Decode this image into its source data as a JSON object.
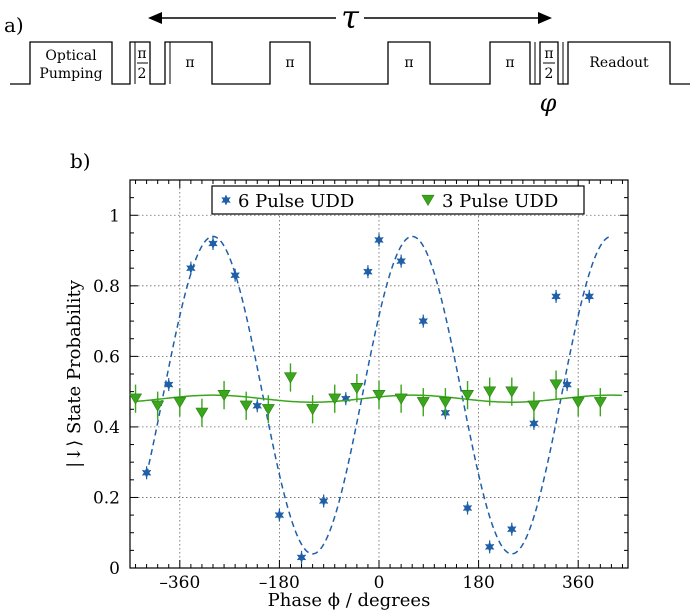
{
  "panel_a": {
    "label": "a)",
    "tau": "τ",
    "phi": "φ",
    "sequence": [
      {
        "label": [
          "Optical",
          "Pumping"
        ]
      },
      {
        "label": [
          "π",
          "2"
        ],
        "fraction": true
      },
      {
        "label": [
          "π"
        ]
      },
      {
        "label": [
          "π"
        ]
      },
      {
        "label": [
          "π"
        ]
      },
      {
        "label": [
          "π"
        ]
      },
      {
        "label": [
          "π",
          "2"
        ],
        "fraction": true
      },
      {
        "label": [
          "Readout"
        ]
      }
    ]
  },
  "panel_b": {
    "label": "b)"
  },
  "chart_data": {
    "type": "scatter",
    "xlabel": "Phase ϕ / degrees",
    "ylabel": "|↓⟩ State Probability",
    "xlim": [
      -450,
      450
    ],
    "ylim": [
      0,
      1.1
    ],
    "xticks": [
      -360,
      -180,
      0,
      180,
      360
    ],
    "yticks": [
      0,
      0.2,
      0.4,
      0.6,
      0.8,
      1
    ],
    "ytick_labels": [
      "0",
      "0.2",
      "0.4",
      "0.6",
      "0.8",
      "1"
    ],
    "xtick_labels": [
      "–360",
      "–180",
      "0",
      "180",
      "360"
    ],
    "grid": true,
    "legend_position": "top",
    "series": [
      {
        "name": "6 Pulse UDD",
        "color": "#1f5fa8",
        "marker": "star",
        "x": [
          -420,
          -380,
          -340,
          -300,
          -260,
          -220,
          -180,
          -140,
          -100,
          -60,
          -20,
          0,
          40,
          80,
          120,
          160,
          200,
          240,
          280,
          320,
          340,
          380
        ],
        "y": [
          0.27,
          0.52,
          0.85,
          0.92,
          0.83,
          0.46,
          0.15,
          0.03,
          0.19,
          0.48,
          0.84,
          0.93,
          0.87,
          0.7,
          0.44,
          0.17,
          0.06,
          0.11,
          0.41,
          0.77,
          0.52,
          0.77
        ],
        "err": [
          0.01,
          0.01,
          0.01,
          0.01,
          0.01,
          0.01,
          0.01,
          0.01,
          0.01,
          0.01,
          0.01,
          0.01,
          0.01,
          0.01,
          0.01,
          0.01,
          0.01,
          0.01,
          0.01,
          0.01,
          0.01,
          0.01
        ],
        "fit": {
          "style": "dashed",
          "offset": 0.49,
          "amplitude": 0.45,
          "period": 360,
          "phase_deg": 60,
          "x_range": [
            -420,
            420
          ]
        }
      },
      {
        "name": "3 Pulse UDD",
        "color": "#3aa61c",
        "marker": "triangle-down",
        "x": [
          -440,
          -400,
          -360,
          -320,
          -280,
          -240,
          -200,
          -160,
          -120,
          -80,
          -40,
          0,
          40,
          80,
          120,
          160,
          200,
          240,
          280,
          320,
          360,
          400
        ],
        "y": [
          0.48,
          0.46,
          0.47,
          0.44,
          0.49,
          0.46,
          0.45,
          0.54,
          0.45,
          0.48,
          0.51,
          0.49,
          0.48,
          0.47,
          0.47,
          0.49,
          0.5,
          0.5,
          0.46,
          0.52,
          0.47,
          0.47
        ],
        "err": [
          0.04,
          0.04,
          0.04,
          0.04,
          0.04,
          0.04,
          0.04,
          0.04,
          0.04,
          0.04,
          0.04,
          0.04,
          0.04,
          0.04,
          0.04,
          0.04,
          0.04,
          0.04,
          0.04,
          0.04,
          0.04,
          0.04
        ],
        "fit": {
          "style": "solid",
          "offset": 0.48,
          "amplitude": 0.01,
          "period": 360,
          "phase_deg": 60,
          "x_range": [
            -440,
            440
          ]
        }
      }
    ]
  }
}
